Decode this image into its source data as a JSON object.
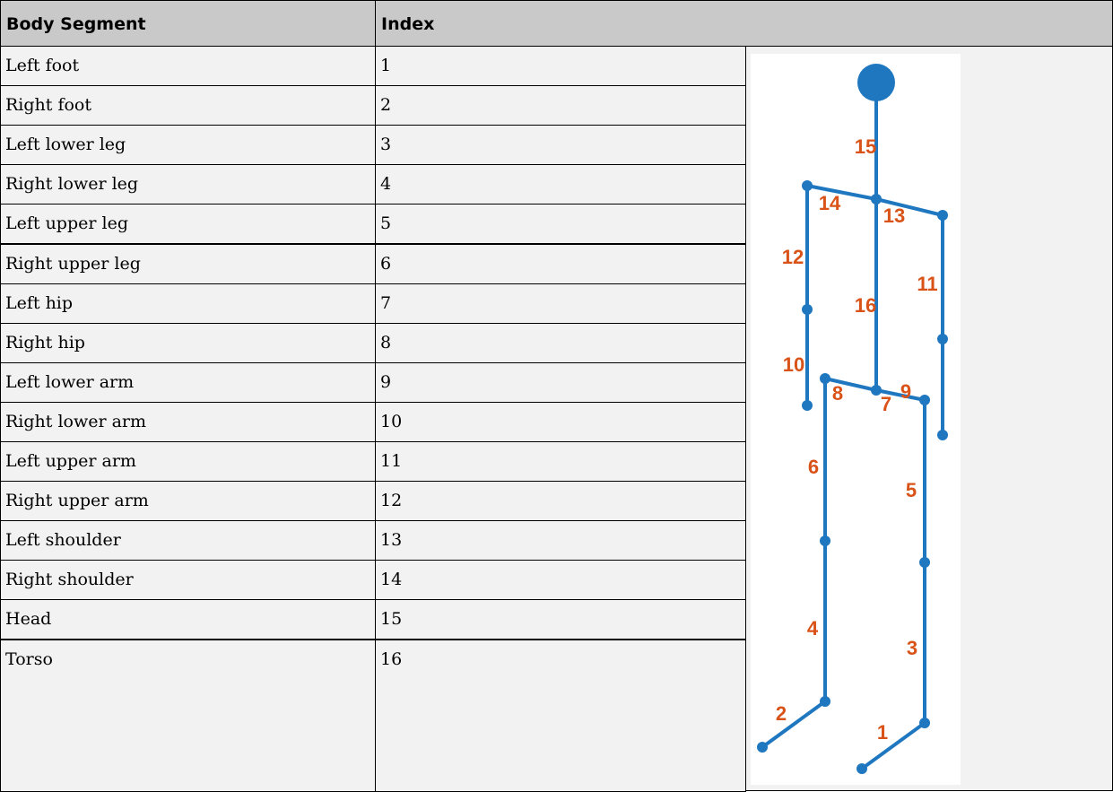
{
  "table": {
    "header": [
      "Body Segment",
      "Index"
    ],
    "rows": [
      [
        "Left foot",
        "1"
      ],
      [
        "Right foot",
        "2"
      ],
      [
        "Left lower leg",
        "3"
      ],
      [
        "Right lower leg",
        "4"
      ],
      [
        "Left upper leg",
        "5"
      ],
      [
        "Right upper leg",
        "6"
      ],
      [
        "Left hip",
        "7"
      ],
      [
        "Right hip",
        "8"
      ],
      [
        "Left lower arm",
        "9"
      ],
      [
        "Right lower arm",
        "10"
      ],
      [
        "Left upper arm",
        "11"
      ],
      [
        "Right upper arm",
        "12"
      ],
      [
        "Left shoulder",
        "13"
      ],
      [
        "Right shoulder",
        "14"
      ],
      [
        "Head",
        "15"
      ],
      [
        "Torso",
        "16"
      ]
    ]
  },
  "diagram": {
    "labels": [
      "1",
      "2",
      "3",
      "4",
      "5",
      "6",
      "7",
      "8",
      "9",
      "10",
      "11",
      "12",
      "13",
      "14",
      "15",
      "16"
    ]
  }
}
